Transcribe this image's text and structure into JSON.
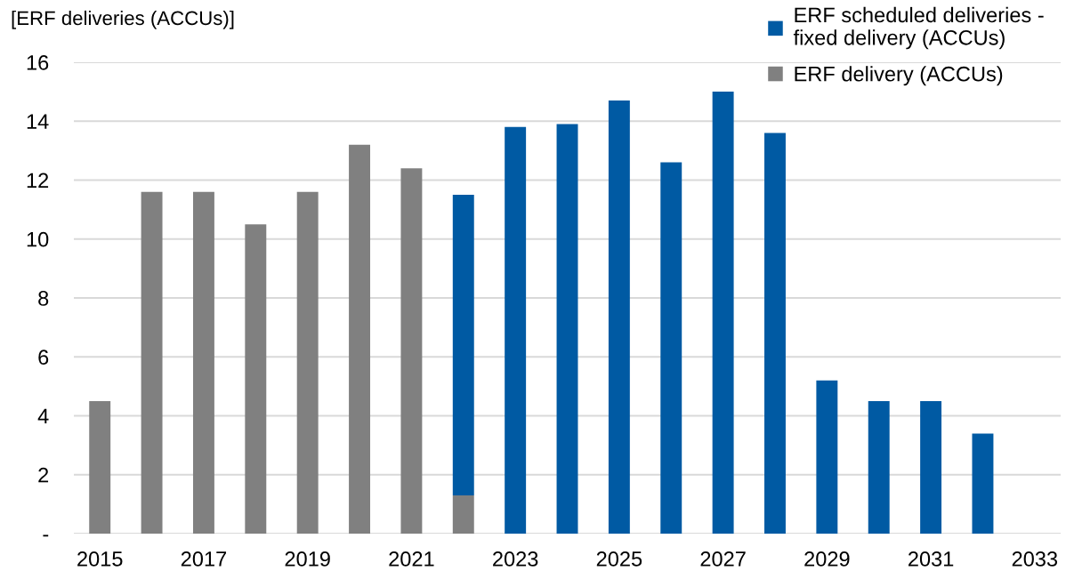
{
  "chart_data": {
    "type": "bar",
    "stacked": true,
    "ylabel": "[ERF deliveries (ACCUs)]",
    "categories": [
      "2015",
      null,
      "2017",
      null,
      "2019",
      null,
      "2021",
      null,
      "2023",
      null,
      "2025",
      null,
      "2027",
      null,
      "2029",
      null,
      "2031",
      null,
      "2033"
    ],
    "series": [
      {
        "name": "ERF delivery (ACCUs)",
        "color": "#808080",
        "values": [
          4.5,
          11.6,
          11.6,
          10.5,
          11.6,
          13.2,
          12.4,
          1.3,
          null,
          null,
          null,
          null,
          null,
          null,
          null,
          null,
          null,
          null,
          null
        ]
      },
      {
        "name": "ERF scheduled deliveries - fixed delivery (ACCUs)",
        "color": "#005aa3",
        "values": [
          null,
          null,
          null,
          null,
          null,
          null,
          null,
          10.2,
          13.8,
          13.9,
          14.7,
          12.6,
          15.0,
          13.6,
          5.2,
          4.5,
          4.5,
          3.4,
          null
        ]
      }
    ],
    "ylim": [
      0,
      16
    ],
    "yticks": [
      {
        "value": 0,
        "label": "-"
      },
      2,
      4,
      6,
      8,
      10,
      12,
      14,
      16
    ],
    "grid": "y",
    "legend": "top right"
  }
}
